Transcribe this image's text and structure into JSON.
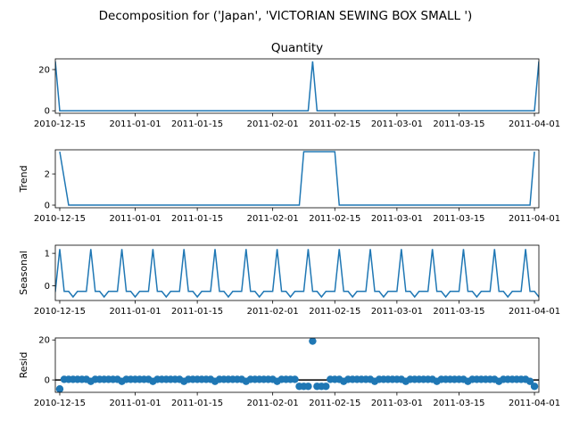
{
  "chart_data": {
    "type": "line",
    "title": "Decomposition for ('Japan', 'VICTORIAN SEWING BOX SMALL ')",
    "x_start": "2010-12-14",
    "x_end": "2011-04-02",
    "x_ticks": [
      "2010-12-15",
      "2011-01-01",
      "2011-01-15",
      "2011-02-01",
      "2011-02-15",
      "2011-03-01",
      "2011-03-15",
      "2011-04-01"
    ],
    "x_tick_positions": [
      "2010-12-15",
      "2011-01-01",
      "2011-01-15",
      "2011-02-01",
      "2011-02-15",
      "2011-03-01",
      "2011-03-15",
      "2011-04-01"
    ],
    "color": "#1f77b4",
    "panels": [
      {
        "key": "observed",
        "title": "Quantity",
        "ylabel": "",
        "ylim": [
          -1.2,
          25.2
        ],
        "yticks": [
          0,
          20
        ],
        "kind": "line",
        "spikes": [
          {
            "x": "2010-12-14",
            "y": 24
          },
          {
            "x": "2011-02-10",
            "y": 24
          },
          {
            "x": "2011-04-02",
            "y": 24
          }
        ],
        "baseline": 0
      },
      {
        "key": "trend",
        "title": "",
        "ylabel": "Trend",
        "ylim": [
          -0.17,
          3.55
        ],
        "yticks": [
          0,
          2
        ],
        "kind": "line",
        "points": [
          [
            "2010-12-15",
            3.43
          ],
          [
            "2010-12-17",
            0
          ],
          [
            "2011-02-07",
            0
          ],
          [
            "2011-02-08",
            3.43
          ],
          [
            "2011-02-15",
            3.43
          ],
          [
            "2011-02-16",
            0
          ],
          [
            "2011-03-31",
            0
          ],
          [
            "2011-04-01",
            3.43
          ]
        ]
      },
      {
        "key": "seasonal",
        "title": "",
        "ylabel": "Seasonal",
        "ylim": [
          -0.45,
          1.25
        ],
        "yticks": [
          0,
          1
        ],
        "kind": "line",
        "period_days": 7,
        "first_peak": "2010-12-15",
        "pattern": [
          1.13,
          -0.17,
          -0.17,
          -0.34,
          -0.17,
          -0.17,
          -0.17
        ]
      },
      {
        "key": "resid",
        "title": "",
        "ylabel": "Resid",
        "ylim": [
          -6.2,
          21.0
        ],
        "yticks": [
          0,
          20
        ],
        "kind": "scatter",
        "zero_line": true,
        "points": [
          {
            "x": "2010-12-15",
            "y": -4.5
          },
          {
            "x": "2010-12-16",
            "y": 0.3
          },
          {
            "x": "2010-12-17",
            "y": 0.3
          },
          {
            "x": "2010-12-18",
            "y": 0.3
          },
          {
            "x": "2010-12-19",
            "y": 0.3
          },
          {
            "x": "2010-12-20",
            "y": 0.3
          },
          {
            "x": "2010-12-21",
            "y": 0.3
          },
          {
            "x": "2010-12-22",
            "y": -0.7
          },
          {
            "x": "2010-12-23",
            "y": 0.3
          },
          {
            "x": "2010-12-24",
            "y": 0.3
          },
          {
            "x": "2010-12-25",
            "y": 0.3
          },
          {
            "x": "2010-12-26",
            "y": 0.3
          },
          {
            "x": "2010-12-27",
            "y": 0.3
          },
          {
            "x": "2010-12-28",
            "y": 0.3
          },
          {
            "x": "2010-12-29",
            "y": -0.7
          },
          {
            "x": "2010-12-30",
            "y": 0.3
          },
          {
            "x": "2010-12-31",
            "y": 0.3
          },
          {
            "x": "2011-01-01",
            "y": 0.3
          },
          {
            "x": "2011-01-02",
            "y": 0.3
          },
          {
            "x": "2011-01-03",
            "y": 0.3
          },
          {
            "x": "2011-01-04",
            "y": 0.3
          },
          {
            "x": "2011-01-05",
            "y": -0.7
          },
          {
            "x": "2011-01-06",
            "y": 0.3
          },
          {
            "x": "2011-01-07",
            "y": 0.3
          },
          {
            "x": "2011-01-08",
            "y": 0.3
          },
          {
            "x": "2011-01-09",
            "y": 0.3
          },
          {
            "x": "2011-01-10",
            "y": 0.3
          },
          {
            "x": "2011-01-11",
            "y": 0.3
          },
          {
            "x": "2011-01-12",
            "y": -0.7
          },
          {
            "x": "2011-01-13",
            "y": 0.3
          },
          {
            "x": "2011-01-14",
            "y": 0.3
          },
          {
            "x": "2011-01-15",
            "y": 0.3
          },
          {
            "x": "2011-01-16",
            "y": 0.3
          },
          {
            "x": "2011-01-17",
            "y": 0.3
          },
          {
            "x": "2011-01-18",
            "y": 0.3
          },
          {
            "x": "2011-01-19",
            "y": -0.7
          },
          {
            "x": "2011-01-20",
            "y": 0.3
          },
          {
            "x": "2011-01-21",
            "y": 0.3
          },
          {
            "x": "2011-01-22",
            "y": 0.3
          },
          {
            "x": "2011-01-23",
            "y": 0.3
          },
          {
            "x": "2011-01-24",
            "y": 0.3
          },
          {
            "x": "2011-01-25",
            "y": 0.3
          },
          {
            "x": "2011-01-26",
            "y": -0.7
          },
          {
            "x": "2011-01-27",
            "y": 0.3
          },
          {
            "x": "2011-01-28",
            "y": 0.3
          },
          {
            "x": "2011-01-29",
            "y": 0.3
          },
          {
            "x": "2011-01-30",
            "y": 0.3
          },
          {
            "x": "2011-01-31",
            "y": 0.3
          },
          {
            "x": "2011-02-01",
            "y": 0.3
          },
          {
            "x": "2011-02-02",
            "y": -0.7
          },
          {
            "x": "2011-02-03",
            "y": 0.3
          },
          {
            "x": "2011-02-04",
            "y": 0.3
          },
          {
            "x": "2011-02-05",
            "y": 0.3
          },
          {
            "x": "2011-02-06",
            "y": 0.3
          },
          {
            "x": "2011-02-07",
            "y": -3.2
          },
          {
            "x": "2011-02-08",
            "y": -3.2
          },
          {
            "x": "2011-02-09",
            "y": -3.2
          },
          {
            "x": "2011-02-10",
            "y": 19.4
          },
          {
            "x": "2011-02-11",
            "y": -3.2
          },
          {
            "x": "2011-02-12",
            "y": -3.2
          },
          {
            "x": "2011-02-13",
            "y": -3.2
          },
          {
            "x": "2011-02-14",
            "y": 0.3
          },
          {
            "x": "2011-02-15",
            "y": 0.3
          },
          {
            "x": "2011-02-16",
            "y": 0.3
          },
          {
            "x": "2011-02-17",
            "y": -0.7
          },
          {
            "x": "2011-02-18",
            "y": 0.3
          },
          {
            "x": "2011-02-19",
            "y": 0.3
          },
          {
            "x": "2011-02-20",
            "y": 0.3
          },
          {
            "x": "2011-02-21",
            "y": 0.3
          },
          {
            "x": "2011-02-22",
            "y": 0.3
          },
          {
            "x": "2011-02-23",
            "y": 0.3
          },
          {
            "x": "2011-02-24",
            "y": -0.7
          },
          {
            "x": "2011-02-25",
            "y": 0.3
          },
          {
            "x": "2011-02-26",
            "y": 0.3
          },
          {
            "x": "2011-02-27",
            "y": 0.3
          },
          {
            "x": "2011-02-28",
            "y": 0.3
          },
          {
            "x": "2011-03-01",
            "y": 0.3
          },
          {
            "x": "2011-03-02",
            "y": 0.3
          },
          {
            "x": "2011-03-03",
            "y": -0.7
          },
          {
            "x": "2011-03-04",
            "y": 0.3
          },
          {
            "x": "2011-03-05",
            "y": 0.3
          },
          {
            "x": "2011-03-06",
            "y": 0.3
          },
          {
            "x": "2011-03-07",
            "y": 0.3
          },
          {
            "x": "2011-03-08",
            "y": 0.3
          },
          {
            "x": "2011-03-09",
            "y": 0.3
          },
          {
            "x": "2011-03-10",
            "y": -0.7
          },
          {
            "x": "2011-03-11",
            "y": 0.3
          },
          {
            "x": "2011-03-12",
            "y": 0.3
          },
          {
            "x": "2011-03-13",
            "y": 0.3
          },
          {
            "x": "2011-03-14",
            "y": 0.3
          },
          {
            "x": "2011-03-15",
            "y": 0.3
          },
          {
            "x": "2011-03-16",
            "y": 0.3
          },
          {
            "x": "2011-03-17",
            "y": -0.7
          },
          {
            "x": "2011-03-18",
            "y": 0.3
          },
          {
            "x": "2011-03-19",
            "y": 0.3
          },
          {
            "x": "2011-03-20",
            "y": 0.3
          },
          {
            "x": "2011-03-21",
            "y": 0.3
          },
          {
            "x": "2011-03-22",
            "y": 0.3
          },
          {
            "x": "2011-03-23",
            "y": 0.3
          },
          {
            "x": "2011-03-24",
            "y": -0.7
          },
          {
            "x": "2011-03-25",
            "y": 0.3
          },
          {
            "x": "2011-03-26",
            "y": 0.3
          },
          {
            "x": "2011-03-27",
            "y": 0.3
          },
          {
            "x": "2011-03-28",
            "y": 0.3
          },
          {
            "x": "2011-03-29",
            "y": 0.3
          },
          {
            "x": "2011-03-30",
            "y": 0.3
          },
          {
            "x": "2011-03-31",
            "y": -0.7
          },
          {
            "x": "2011-04-01",
            "y": -3.2
          }
        ]
      }
    ]
  }
}
